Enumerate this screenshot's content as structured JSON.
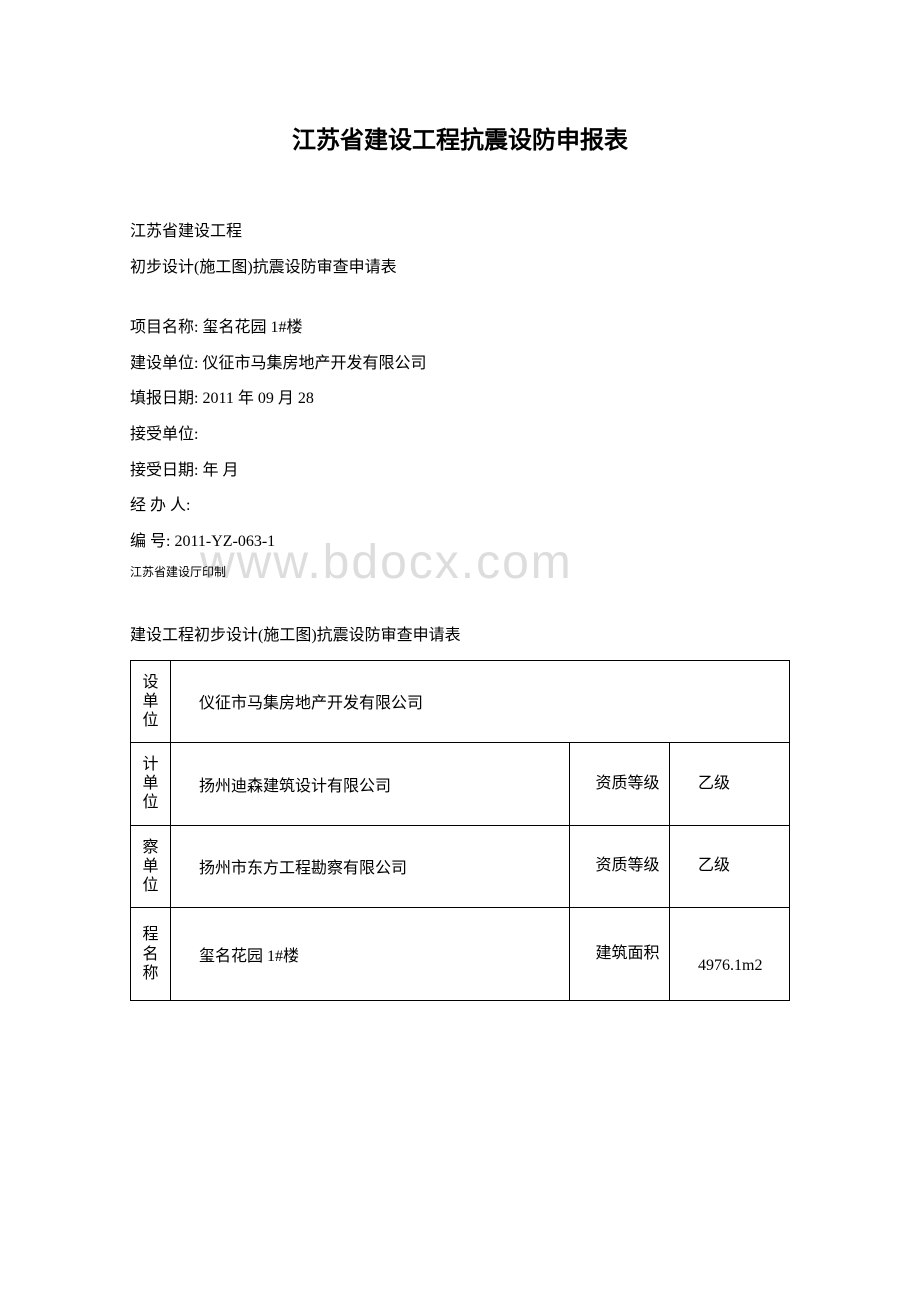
{
  "title": "江苏省建设工程抗震设防申报表",
  "header": {
    "line1": "江苏省建设工程",
    "line2": "初步设计(施工图)抗震设防审查申请表"
  },
  "fields": {
    "project_name_label": "项目名称:",
    "project_name_value": " 玺名花园 1#楼",
    "construction_unit_label": "建设单位:",
    "construction_unit_value": " 仪征市马集房地产开发有限公司",
    "fill_date_label": "填报日期:",
    "fill_date_value": " 2011 年 09 月 28",
    "accept_unit_label": "接受单位:",
    "accept_unit_value": "",
    "accept_date_label": "接受日期:",
    "accept_date_value": "  年  月",
    "handler_label": "经 办 人:",
    "handler_value": "",
    "number_label": "编  号:",
    "number_value": "  2011-YZ-063-1",
    "issuer": "江苏省建设厅印制"
  },
  "watermark": "www.bdocx.com",
  "subtitle": "建设工程初步设计(施工图)抗震设防审查申请表",
  "table": {
    "rows": [
      {
        "label": "设单位",
        "value": "仪征市马集房地产开发有限公司",
        "sub_label": "",
        "sub_value": ""
      },
      {
        "label": "计单位",
        "value": "扬州迪森建筑设计有限公司",
        "sub_label": "　资质等级",
        "sub_value": "乙级"
      },
      {
        "label": "察单位",
        "value": "扬州市东方工程勘察有限公司",
        "sub_label": "　资质等级",
        "sub_value": "乙级"
      },
      {
        "label": "程名称",
        "value": "玺名花园 1#楼",
        "sub_label": "　建筑面积",
        "sub_value": "　4976.1m2"
      }
    ]
  }
}
